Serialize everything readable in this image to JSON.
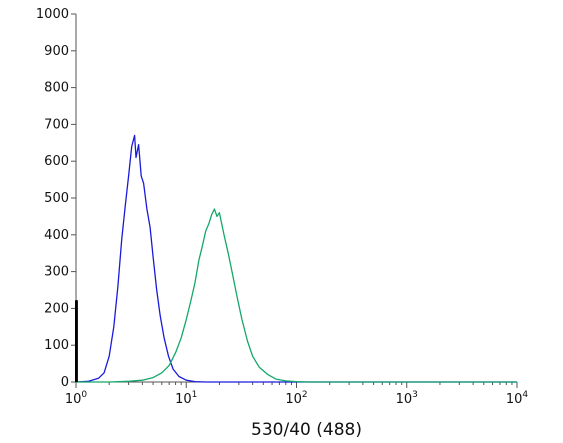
{
  "chart_data": {
    "type": "line",
    "title": "",
    "xlabel": "530/40 (488)",
    "ylabel": "",
    "x_scale": "log",
    "xlim": [
      1,
      10000
    ],
    "ylim": [
      0,
      1000
    ],
    "grid": false,
    "legend": "none",
    "x_ticks": [
      {
        "value": 1,
        "base": "10",
        "exp": "0"
      },
      {
        "value": 10,
        "base": "10",
        "exp": "1"
      },
      {
        "value": 100,
        "base": "10",
        "exp": "2"
      },
      {
        "value": 1000,
        "base": "10",
        "exp": "3"
      },
      {
        "value": 10000,
        "base": "10",
        "exp": "4"
      }
    ],
    "y_ticks": [
      "0",
      "100",
      "200",
      "300",
      "400",
      "500",
      "600",
      "700",
      "800",
      "900",
      "1000"
    ],
    "series": [
      {
        "color": "#1a1adb",
        "points": [
          [
            1.0,
            0
          ],
          [
            1.3,
            2
          ],
          [
            1.6,
            10
          ],
          [
            1.8,
            25
          ],
          [
            2.0,
            70
          ],
          [
            2.2,
            150
          ],
          [
            2.4,
            260
          ],
          [
            2.6,
            390
          ],
          [
            2.8,
            480
          ],
          [
            3.0,
            560
          ],
          [
            3.2,
            640
          ],
          [
            3.4,
            670
          ],
          [
            3.5,
            610
          ],
          [
            3.7,
            645
          ],
          [
            3.9,
            560
          ],
          [
            4.1,
            540
          ],
          [
            4.4,
            470
          ],
          [
            4.7,
            420
          ],
          [
            5.0,
            340
          ],
          [
            5.4,
            250
          ],
          [
            5.8,
            180
          ],
          [
            6.3,
            120
          ],
          [
            6.9,
            70
          ],
          [
            7.6,
            35
          ],
          [
            8.6,
            15
          ],
          [
            10.0,
            5
          ],
          [
            12.0,
            1
          ],
          [
            15.0,
            0
          ],
          [
            10000,
            0
          ]
        ]
      },
      {
        "color": "#13a86a",
        "points": [
          [
            1.0,
            0
          ],
          [
            2.0,
            0
          ],
          [
            3.0,
            2
          ],
          [
            4.0,
            5
          ],
          [
            5.0,
            12
          ],
          [
            6.0,
            25
          ],
          [
            7.0,
            45
          ],
          [
            8.0,
            80
          ],
          [
            9.0,
            120
          ],
          [
            10.0,
            170
          ],
          [
            11.0,
            220
          ],
          [
            12.0,
            270
          ],
          [
            13.0,
            330
          ],
          [
            14.0,
            370
          ],
          [
            15.0,
            410
          ],
          [
            16.0,
            430
          ],
          [
            17.0,
            455
          ],
          [
            18.0,
            470
          ],
          [
            19.0,
            450
          ],
          [
            20.0,
            460
          ],
          [
            22.0,
            400
          ],
          [
            24.0,
            350
          ],
          [
            26.0,
            300
          ],
          [
            29.0,
            230
          ],
          [
            32.0,
            170
          ],
          [
            36.0,
            110
          ],
          [
            40.0,
            70
          ],
          [
            46.0,
            40
          ],
          [
            55.0,
            20
          ],
          [
            65.0,
            8
          ],
          [
            80.0,
            3
          ],
          [
            100.0,
            1
          ],
          [
            130.0,
            0
          ],
          [
            10000,
            0
          ]
        ]
      },
      {
        "color": "#000000",
        "points": [
          [
            1.0,
            0
          ],
          [
            1.0,
            220
          ],
          [
            1.02,
            220
          ],
          [
            1.02,
            0
          ]
        ]
      }
    ]
  }
}
